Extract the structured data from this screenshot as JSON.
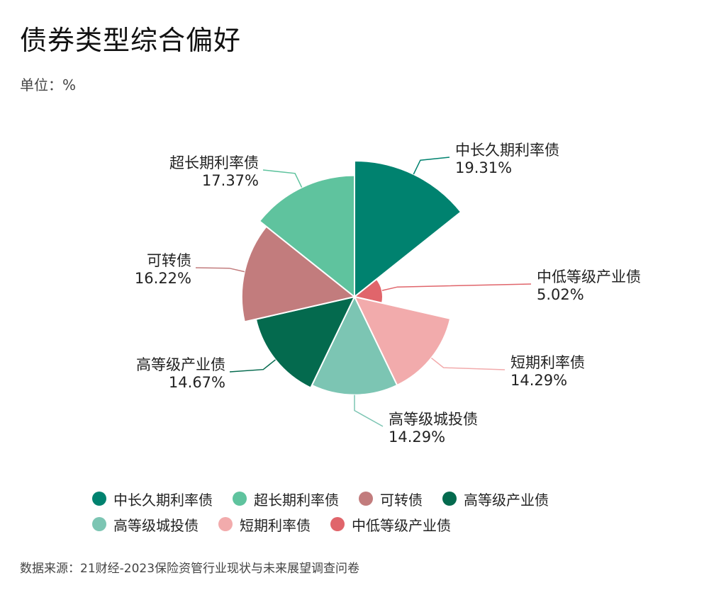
{
  "header": {
    "title": "债券类型综合偏好",
    "unit": "单位：%"
  },
  "chart_data": {
    "type": "pie",
    "variant": "rose",
    "title": "债券类型综合偏好",
    "unit": "%",
    "slices": [
      {
        "name": "中长久期利率债",
        "value": 19.31,
        "label": "19.31%",
        "color": "#00826f"
      },
      {
        "name": "中低等级产业债",
        "value": 5.02,
        "label": "5.02%",
        "color": "#e0656b"
      },
      {
        "name": "短期利率债",
        "value": 14.29,
        "label": "14.29%",
        "color": "#f2abac"
      },
      {
        "name": "高等级城投债",
        "value": 14.29,
        "label": "14.29%",
        "color": "#7cc5b3"
      },
      {
        "name": "高等级产业债",
        "value": 14.67,
        "label": "14.67%",
        "color": "#046a4e"
      },
      {
        "name": "可转债",
        "value": 16.22,
        "label": "16.22%",
        "color": "#c27c7d"
      },
      {
        "name": "超长期利率债",
        "value": 17.37,
        "label": "17.37%",
        "color": "#5fc39e"
      }
    ],
    "legend": {
      "placement": "bottom",
      "order": [
        "中长久期利率债",
        "超长期利率债",
        "可转债",
        "高等级产业债",
        "高等级城投债",
        "短期利率债",
        "中低等级产业债"
      ]
    }
  },
  "footer": {
    "source": "数据来源：21财经-2023保险资管行业现状与未来展望调查问卷"
  }
}
